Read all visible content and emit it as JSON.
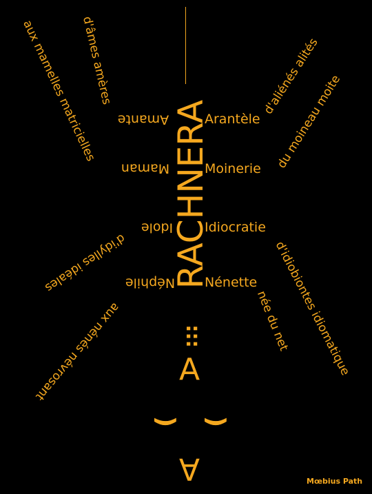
{
  "palette": {
    "background": "#000000",
    "ink": "#f5a81f"
  },
  "poem": {
    "title": "RACHNERA",
    "dots": ":::",
    "letter_a": "A",
    "eye_left": "(",
    "eye_right": "(",
    "mouth": "A",
    "right": {
      "l1": "Arantèle",
      "l2": "Moinerie",
      "l3": "Idiocratie",
      "l4": "Nénette"
    },
    "left": {
      "l1": "Amante",
      "l2": "Maman",
      "l3": "Idole",
      "l4": "Néphile"
    },
    "legs_right": {
      "l1": "d'aliénés alités",
      "l2": "du moineau moite",
      "l3": "d'idiobiontes idiomatique",
      "l4": "née du net"
    },
    "legs_left": {
      "l1": "d'âmes amères",
      "l2": "aux mamelles matricielles",
      "l3": "d'idylles idéales",
      "l4": "aux nénés névrosant"
    },
    "signature": "Mœbius Path"
  }
}
